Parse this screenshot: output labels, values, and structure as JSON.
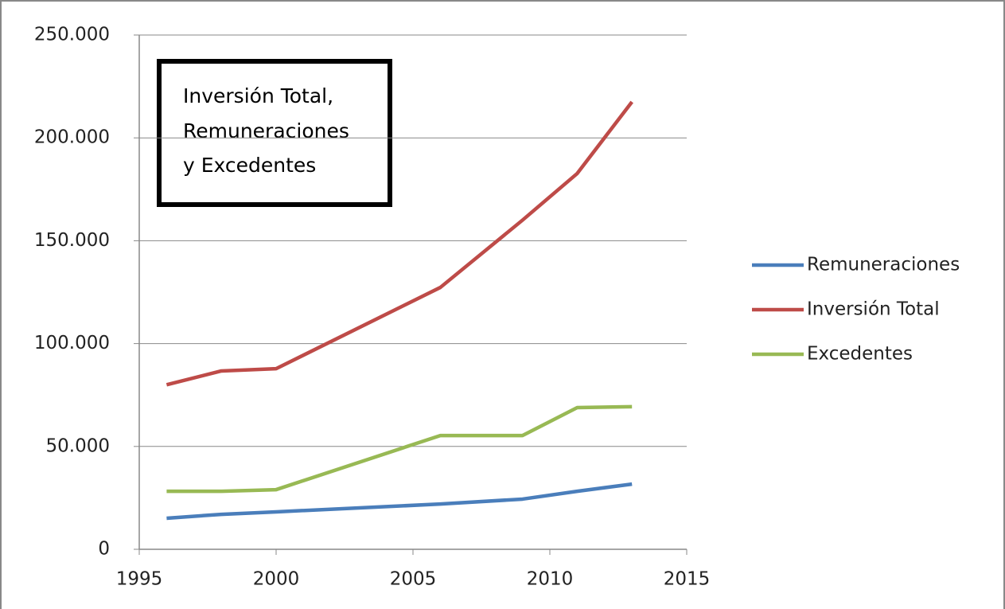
{
  "chart_data": {
    "type": "line",
    "title": [
      "Inversión Total,",
      "Remuneraciones",
      "y Excedentes"
    ],
    "x": [
      1996,
      1998,
      2000,
      2006,
      2009,
      2011,
      2013
    ],
    "series": [
      {
        "name": "Remuneraciones",
        "color": "#4a7ebb",
        "values": [
          15100,
          17000,
          18200,
          22000,
          24400,
          28200,
          31700
        ]
      },
      {
        "name": "Inversión Total",
        "color": "#be4b48",
        "values": [
          80000,
          86700,
          87800,
          127300,
          160000,
          182700,
          217500
        ]
      },
      {
        "name": "Excedentes",
        "color": "#98b954",
        "values": [
          28200,
          28200,
          29000,
          55300,
          55300,
          68900,
          69300
        ]
      }
    ],
    "xlim": [
      1995,
      2015
    ],
    "xticks": [
      1995,
      2000,
      2005,
      2010,
      2015
    ],
    "ylim": [
      0,
      250000
    ],
    "yticks": [
      0,
      {
        "value": 50000,
        "label": "50.000"
      },
      {
        "value": 100000,
        "label": "100.000"
      },
      {
        "value": 150000,
        "label": "150.000"
      },
      {
        "value": 200000,
        "label": "200.000"
      },
      {
        "value": 250000,
        "label": "250.000"
      }
    ],
    "grid": true,
    "legend": "right"
  }
}
